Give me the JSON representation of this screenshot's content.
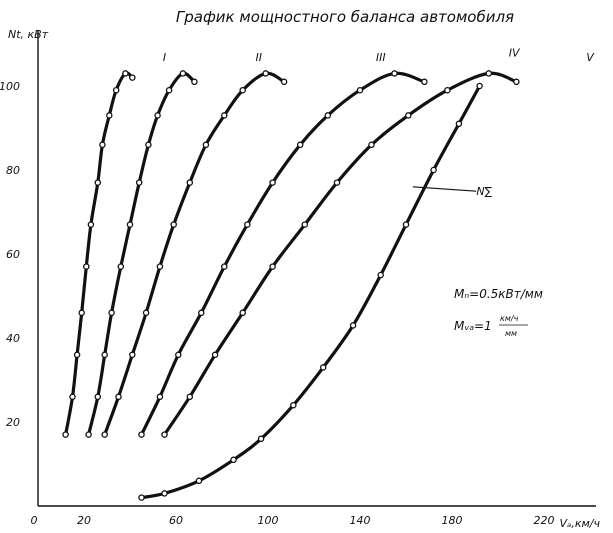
{
  "chart_data": {
    "type": "line",
    "title": "График мощностного баланса автомобиля",
    "xlabel": "Vₐ,км/ч",
    "ylabel": "Nt, кВт",
    "xlim": [
      0,
      250
    ],
    "ylim": [
      0,
      110
    ],
    "x_ticks": [
      "0",
      "20",
      "60",
      "100",
      "140",
      "180",
      "220"
    ],
    "x_tick_values": [
      0,
      20,
      60,
      100,
      140,
      180,
      220
    ],
    "y_ticks": [
      "20",
      "40",
      "60",
      "80",
      "100"
    ],
    "y_tick_values": [
      20,
      40,
      60,
      80,
      100
    ],
    "grid": false,
    "series": [
      {
        "name": "I",
        "label_at": [
          55,
          106
        ],
        "points": [
          [
            12,
            17
          ],
          [
            15,
            26
          ],
          [
            17,
            36
          ],
          [
            19,
            46
          ],
          [
            21,
            57
          ],
          [
            23,
            67
          ],
          [
            26,
            77
          ],
          [
            28,
            86
          ],
          [
            31,
            93
          ],
          [
            34,
            99
          ],
          [
            38,
            103
          ],
          [
            41,
            102
          ]
        ]
      },
      {
        "name": "II",
        "label_at": [
          96,
          106
        ],
        "points": [
          [
            22,
            17
          ],
          [
            26,
            26
          ],
          [
            29,
            36
          ],
          [
            32,
            46
          ],
          [
            36,
            57
          ],
          [
            40,
            67
          ],
          [
            44,
            77
          ],
          [
            48,
            86
          ],
          [
            52,
            93
          ],
          [
            57,
            99
          ],
          [
            63,
            103
          ],
          [
            68,
            101
          ]
        ]
      },
      {
        "name": "III",
        "label_at": [
          149,
          106
        ],
        "points": [
          [
            29,
            17
          ],
          [
            35,
            26
          ],
          [
            41,
            36
          ],
          [
            47,
            46
          ],
          [
            53,
            57
          ],
          [
            59,
            67
          ],
          [
            66,
            77
          ],
          [
            73,
            86
          ],
          [
            81,
            93
          ],
          [
            89,
            99
          ],
          [
            99,
            103
          ],
          [
            107,
            101
          ]
        ]
      },
      {
        "name": "IV",
        "label_at": [
          207,
          107
        ],
        "points": [
          [
            45,
            17
          ],
          [
            53,
            26
          ],
          [
            61,
            36
          ],
          [
            71,
            46
          ],
          [
            81,
            57
          ],
          [
            91,
            67
          ],
          [
            102,
            77
          ],
          [
            114,
            86
          ],
          [
            126,
            93
          ],
          [
            140,
            99
          ],
          [
            155,
            103
          ],
          [
            168,
            101
          ]
        ]
      },
      {
        "name": "V",
        "label_at": [
          240,
          106
        ],
        "points": [
          [
            55,
            17
          ],
          [
            66,
            26
          ],
          [
            77,
            36
          ],
          [
            89,
            46
          ],
          [
            102,
            57
          ],
          [
            116,
            67
          ],
          [
            130,
            77
          ],
          [
            145,
            86
          ],
          [
            161,
            93
          ],
          [
            178,
            99
          ],
          [
            196,
            103
          ],
          [
            208,
            101
          ]
        ]
      },
      {
        "name": "N∑",
        "label_at": [
          194,
          74
        ],
        "points": [
          [
            45,
            2
          ],
          [
            55,
            3
          ],
          [
            70,
            6
          ],
          [
            85,
            11
          ],
          [
            97,
            16
          ],
          [
            111,
            24
          ],
          [
            124,
            33
          ],
          [
            137,
            43
          ],
          [
            149,
            55
          ],
          [
            160,
            67
          ],
          [
            172,
            80
          ],
          [
            183,
            91
          ],
          [
            192,
            100
          ]
        ]
      }
    ]
  },
  "notes": {
    "scale_power": "Mₙ=0.5кВт/мм",
    "scale_speed_prefix": "Mᵥₐ=1",
    "scale_speed_num": "км/ч",
    "scale_speed_den": "мм"
  }
}
